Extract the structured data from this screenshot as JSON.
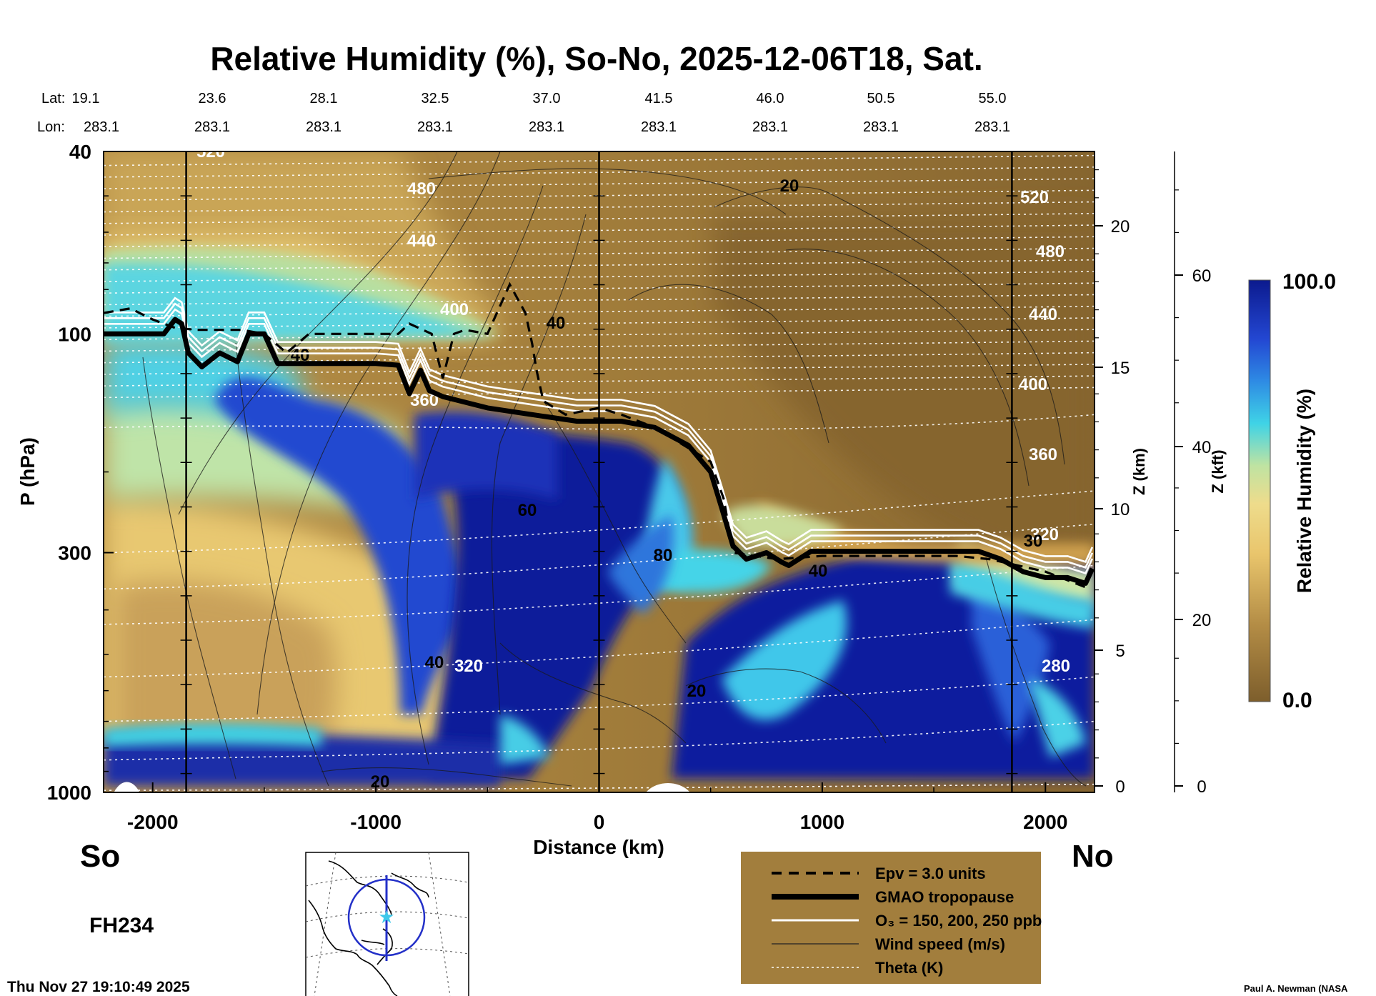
{
  "title": "Relative Humidity (%), So-No, 2025-12-06T18, Sat.",
  "header": {
    "lat_label": "Lat:",
    "lon_label": "Lon:",
    "lats": [
      "19.1",
      "23.6",
      "28.1",
      "32.5",
      "37.0",
      "41.5",
      "46.0",
      "50.5",
      "55.0"
    ],
    "lons": [
      "283.1",
      "283.1",
      "283.1",
      "283.1",
      "283.1",
      "283.1",
      "283.1",
      "283.1",
      "283.1"
    ]
  },
  "chart_data": {
    "type": "heatmap",
    "x_axis": {
      "label": "Distance (km)",
      "range": [
        -2220,
        2220
      ],
      "ticks": [
        "-2000",
        "-1000",
        "0",
        "1000",
        "2000"
      ],
      "tick_values": [
        -2000,
        -1000,
        0,
        1000,
        2000
      ]
    },
    "y_axis": {
      "label": "P (hPa)",
      "scale": "log",
      "range": [
        1000,
        40
      ],
      "ticks": [
        "40",
        "100",
        "300",
        "1000"
      ],
      "tick_values": [
        40,
        100,
        300,
        1000
      ]
    },
    "z_km_axis": {
      "label": "Z (km)",
      "ticks": [
        "0",
        "5",
        "10",
        "15",
        "20"
      ],
      "tick_values": [
        0,
        5,
        10,
        15,
        20
      ]
    },
    "z_kft_axis": {
      "label": "Z (kft)",
      "ticks": [
        "0",
        "20",
        "40",
        "60"
      ],
      "tick_values": [
        0,
        20,
        40,
        60
      ]
    },
    "colorbar": {
      "label": "Relative Humidity (%)",
      "min_label": "0.0",
      "max_label": "100.0",
      "range": [
        0,
        100
      ]
    },
    "vertical_markers_km": [
      -1850,
      0,
      1850
    ],
    "theta_contour_labels": [
      "520",
      "480",
      "440",
      "400",
      "360",
      "320",
      "280"
    ],
    "theta_labels_right": [
      "520",
      "480",
      "440",
      "400",
      "360",
      "320",
      "280"
    ],
    "wind_contour_labels": [
      "20",
      "40",
      "40",
      "60",
      "80",
      "40",
      "30",
      "20",
      "20"
    ],
    "tropopause_hpa": [
      [
        -2220,
        100
      ],
      [
        -1950,
        100
      ],
      [
        -1900,
        93
      ],
      [
        -1870,
        95
      ],
      [
        -1840,
        110
      ],
      [
        -1780,
        118
      ],
      [
        -1700,
        110
      ],
      [
        -1620,
        115
      ],
      [
        -1570,
        100
      ],
      [
        -1500,
        100
      ],
      [
        -1440,
        116
      ],
      [
        -1000,
        116
      ],
      [
        -900,
        117
      ],
      [
        -850,
        135
      ],
      [
        -800,
        120
      ],
      [
        -760,
        133
      ],
      [
        -700,
        137
      ],
      [
        -500,
        145
      ],
      [
        -300,
        150
      ],
      [
        -100,
        155
      ],
      [
        100,
        155
      ],
      [
        250,
        160
      ],
      [
        400,
        175
      ],
      [
        500,
        200
      ],
      [
        550,
        240
      ],
      [
        600,
        290
      ],
      [
        660,
        310
      ],
      [
        750,
        300
      ],
      [
        820,
        315
      ],
      [
        850,
        320
      ],
      [
        950,
        298
      ],
      [
        1200,
        298
      ],
      [
        1700,
        298
      ],
      [
        1800,
        310
      ],
      [
        1900,
        330
      ],
      [
        2000,
        340
      ],
      [
        2100,
        340
      ],
      [
        2180,
        350
      ],
      [
        2210,
        325
      ]
    ],
    "epv_hpa": [
      [
        -2220,
        90
      ],
      [
        -2100,
        88
      ],
      [
        -2000,
        93
      ],
      [
        -1900,
        97
      ],
      [
        -1800,
        98
      ],
      [
        -1600,
        98
      ],
      [
        -1500,
        100
      ],
      [
        -1400,
        110
      ],
      [
        -1300,
        100
      ],
      [
        -900,
        100
      ],
      [
        -850,
        95
      ],
      [
        -750,
        100
      ],
      [
        -700,
        125
      ],
      [
        -650,
        100
      ],
      [
        -600,
        98
      ],
      [
        -500,
        100
      ],
      [
        -400,
        78
      ],
      [
        -330,
        90
      ],
      [
        -300,
        105
      ],
      [
        -280,
        120
      ],
      [
        -250,
        140
      ],
      [
        -150,
        150
      ],
      [
        0,
        145
      ],
      [
        100,
        150
      ],
      [
        250,
        160
      ],
      [
        500,
        190
      ],
      [
        560,
        230
      ],
      [
        600,
        300
      ],
      [
        800,
        310
      ],
      [
        1000,
        305
      ],
      [
        1600,
        305
      ],
      [
        1750,
        310
      ],
      [
        2000,
        330
      ],
      [
        2200,
        360
      ]
    ],
    "legend": {
      "position": "bottom-right",
      "background": "#a27e3d",
      "items": [
        {
          "label": "Epv = 3.0 units",
          "style": "dashed-black-thick"
        },
        {
          "label": "GMAO tropopause",
          "style": "solid-black-heavy"
        },
        {
          "label": "O₃ = 150, 200, 250 ppb",
          "style": "solid-white"
        },
        {
          "label": "Wind speed (m/s)",
          "style": "thin-black"
        },
        {
          "label": "Theta (K)",
          "style": "dotted-white"
        }
      ]
    },
    "colors": {
      "dry": "#8c6a34",
      "tan": "#c8a052",
      "yellow": "#efd27a",
      "pale_green": "#c8e09a",
      "cyan": "#45d6e6",
      "blue": "#2a5bd4",
      "dark_blue": "#0d1f9c"
    }
  },
  "bottom": {
    "so_label": "So",
    "no_label": "No",
    "forecast_hour": "FH234",
    "timestamp": "Thu Nov 27 19:10:49 2025",
    "credit": "Paul A. Newman (NASA"
  }
}
